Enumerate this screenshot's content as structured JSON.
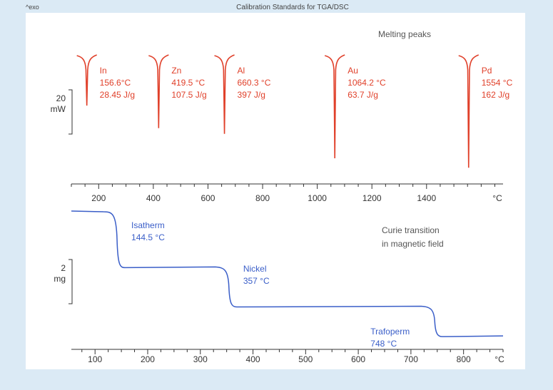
{
  "header": {
    "exo_label": "^exo",
    "title": "Calibration Standards for TGA/DSC"
  },
  "colors": {
    "background": "#dbeaf5",
    "panel": "#ffffff",
    "dsc_curve": "#e0402a",
    "tga_curve": "#3a5ec8",
    "text": "#444444",
    "axis": "#333333"
  },
  "chart_data": [
    {
      "type": "line",
      "name": "DSC melting peaks",
      "annotation": "Melting peaks",
      "scale_bar": {
        "value": "20",
        "unit": "mW"
      },
      "x_unit": "°C",
      "xlim": [
        100,
        1680
      ],
      "x_ticks": [
        200,
        400,
        600,
        800,
        1000,
        1200,
        1400
      ],
      "x_minor_step": 50,
      "peaks": [
        {
          "metal": "In",
          "temp_label": "156.6°C",
          "enthalpy_label": "28.45 J/g",
          "x": 156.6,
          "depth": 0.44
        },
        {
          "metal": "Zn",
          "temp_label": "419.5 °C",
          "enthalpy_label": "107.5 J/g",
          "x": 419.5,
          "depth": 0.68
        },
        {
          "metal": "Al",
          "temp_label": "660.3 °C",
          "enthalpy_label": "397 J/g",
          "x": 660.3,
          "depth": 0.74
        },
        {
          "metal": "Au",
          "temp_label": "1064.2 °C",
          "enthalpy_label": "63.7 J/g",
          "x": 1064.2,
          "depth": 1.0
        },
        {
          "metal": "Pd",
          "temp_label": "1554 °C",
          "enthalpy_label": "162 J/g",
          "x": 1554,
          "depth": 1.1
        }
      ]
    },
    {
      "type": "line",
      "name": "TGA Curie transitions",
      "annotation_line1": "Curie transition",
      "annotation_line2": "in magnetic field",
      "scale_bar": {
        "value": "2",
        "unit": "mg"
      },
      "x_unit": "°C",
      "xlim": [
        55,
        875
      ],
      "x_ticks": [
        100,
        200,
        300,
        400,
        500,
        600,
        700,
        800
      ],
      "x_minor_step": 25,
      "steps": [
        {
          "name": "Isatherm",
          "temp_label": "144.5 °C",
          "x": 144.5,
          "level_before": 0,
          "level_after": 3.2
        },
        {
          "name": "Nickel",
          "temp_label": "357 °C",
          "x": 357,
          "level_before": 3.2,
          "level_after": 5.45
        },
        {
          "name": "Trafoperm",
          "temp_label": "748 °C",
          "x": 748,
          "level_before": 5.45,
          "level_after": 7.15
        }
      ]
    }
  ]
}
